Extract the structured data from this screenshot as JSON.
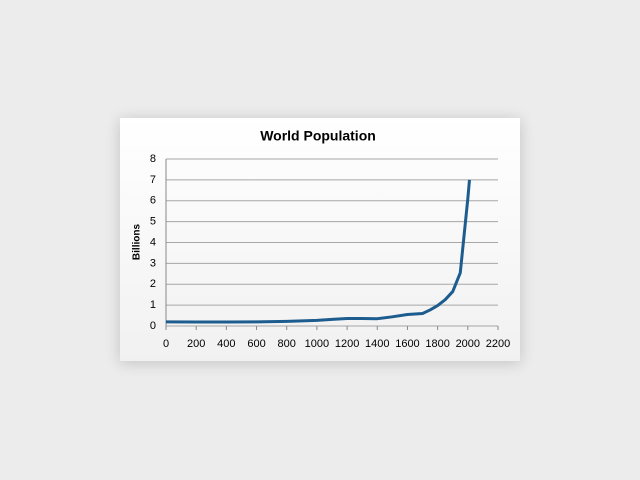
{
  "chart_data": {
    "type": "line",
    "title": "World Population",
    "y_label": "Billions",
    "series": [
      {
        "name": "World Population",
        "color": "#1d5c8e",
        "x": [
          0,
          200,
          400,
          600,
          800,
          1000,
          1100,
          1200,
          1300,
          1400,
          1500,
          1600,
          1700,
          1750,
          1800,
          1850,
          1900,
          1950,
          2000,
          2011
        ],
        "values": [
          0.2,
          0.19,
          0.19,
          0.2,
          0.22,
          0.27,
          0.32,
          0.36,
          0.36,
          0.35,
          0.44,
          0.55,
          0.6,
          0.77,
          0.98,
          1.26,
          1.65,
          2.55,
          6.1,
          7.0
        ]
      }
    ],
    "xlim": [
      0,
      2200
    ],
    "xticks": [
      0,
      200,
      400,
      600,
      800,
      1000,
      1200,
      1400,
      1600,
      1800,
      2000,
      2200
    ],
    "ylim": [
      0,
      8
    ],
    "yticks": [
      0,
      1,
      2,
      3,
      4,
      5,
      6,
      7,
      8
    ],
    "grid": true
  }
}
